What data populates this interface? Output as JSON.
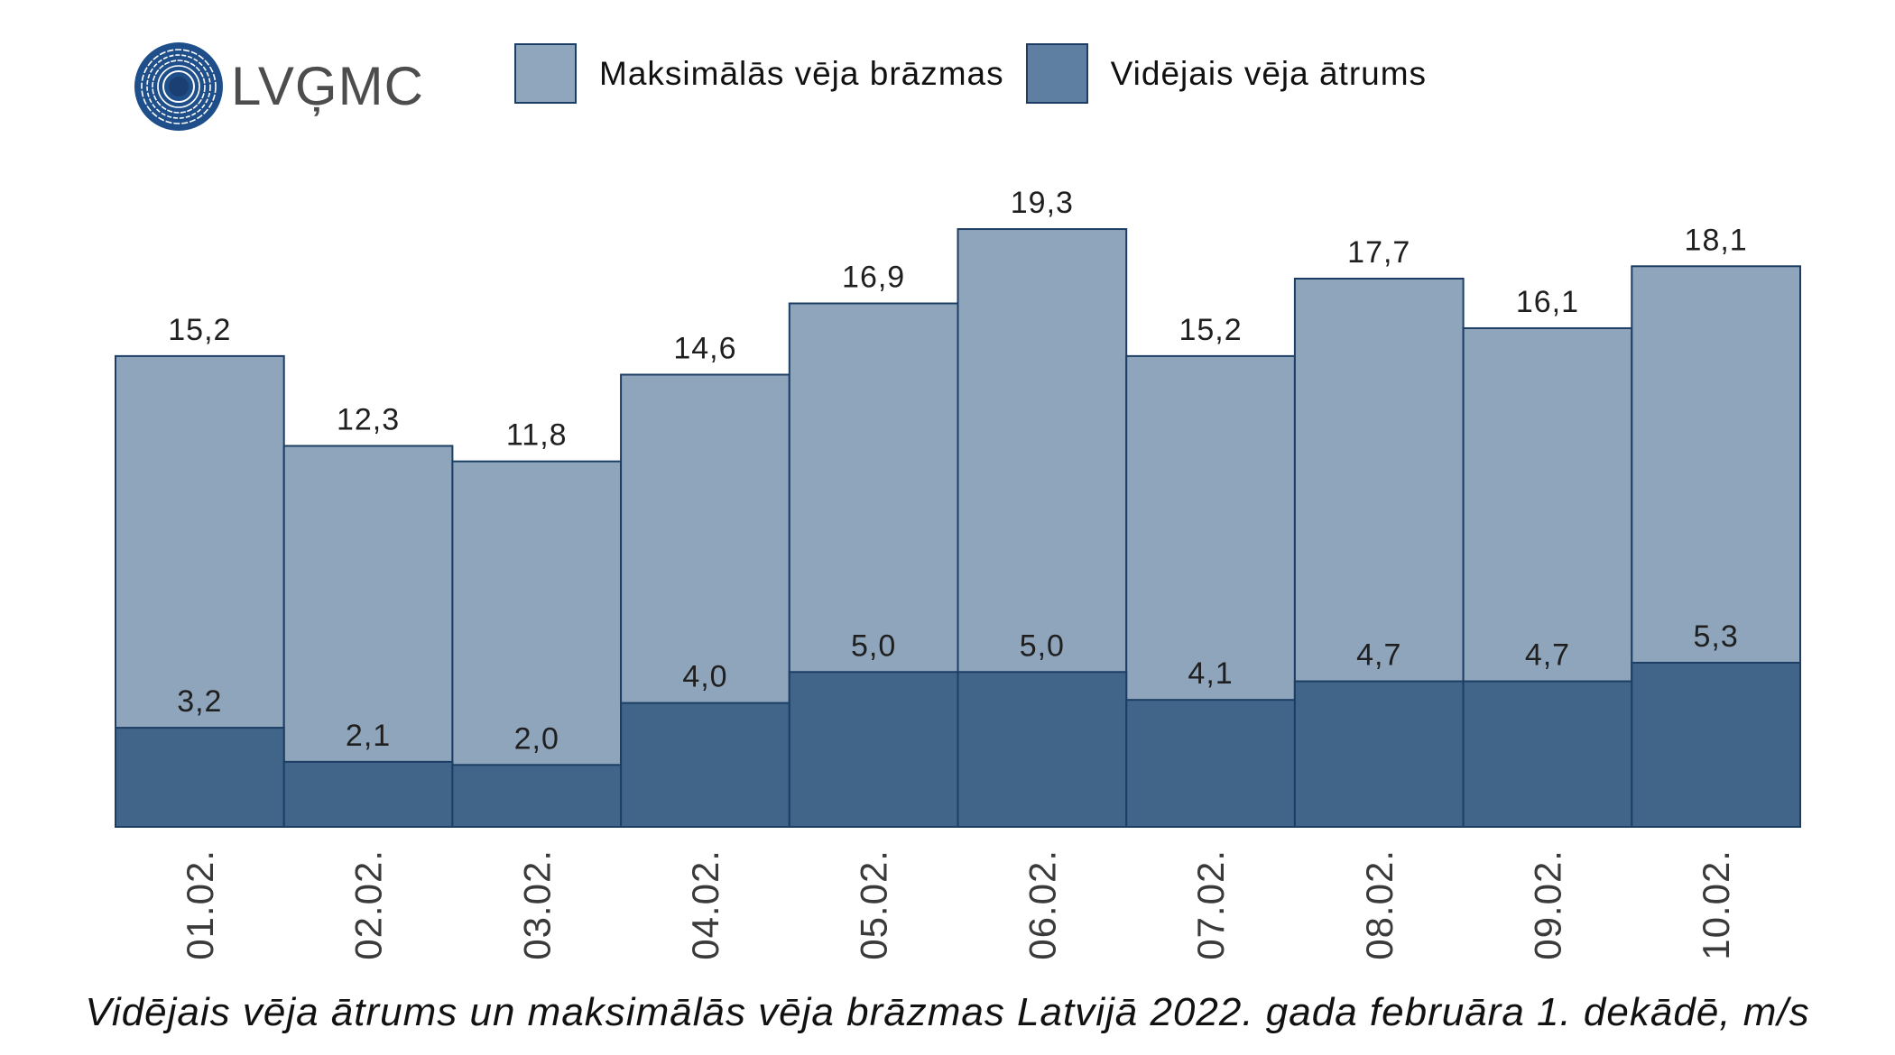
{
  "logo": {
    "text": "LVĢMC",
    "icon": "lvgmc-rings-icon",
    "color": "#1f4f8a"
  },
  "colors": {
    "bar_outline": "#1d3e64",
    "label_text": "#1f1f1f",
    "tick_text": "#3a3a3a",
    "logo_text": "#4d4d4d"
  },
  "chart_data": {
    "type": "bar",
    "bar_mode": "overlay",
    "title": "Vidējais vēja ātrums un maksimālās vēja brāzmas Latvijā 2022. gada februāra 1. dekādē, m/s",
    "categories": [
      "01.02.",
      "02.02.",
      "03.02.",
      "04.02.",
      "05.02.",
      "06.02.",
      "07.02.",
      "08.02.",
      "09.02.",
      "10.02."
    ],
    "ylim": [
      0,
      20
    ],
    "grid": false,
    "legend": "top",
    "series": [
      {
        "name": "Maksimālās vēja brāzmas",
        "values": [
          15.2,
          12.3,
          11.8,
          14.6,
          16.9,
          19.3,
          15.2,
          17.7,
          16.1,
          18.1
        ],
        "labels": [
          "15,2",
          "12,3",
          "11,8",
          "14,6",
          "16,9",
          "19,3",
          "15,2",
          "17,7",
          "16,1",
          "18,1"
        ],
        "color": "#8fa5bc",
        "swatch_color": "#8fa6bd"
      },
      {
        "name": "Vidējais vēja ātrums",
        "values": [
          3.2,
          2.1,
          2.0,
          4.0,
          5.0,
          5.0,
          4.1,
          4.7,
          4.7,
          5.3
        ],
        "labels": [
          "3,2",
          "2,1",
          "2,0",
          "4,0",
          "5,0",
          "5,0",
          "4,1",
          "4,7",
          "4,7",
          "5,3"
        ],
        "color": "#416589",
        "swatch_color": "#5e7fa1"
      }
    ]
  }
}
